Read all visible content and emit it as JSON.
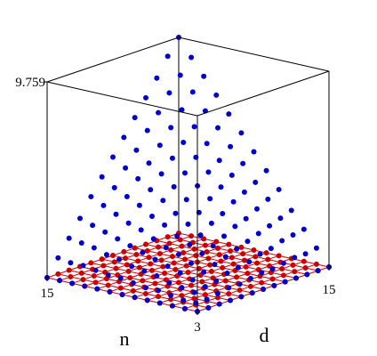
{
  "chart_data": {
    "type": "scatter3d",
    "xlabel": "n",
    "ylabel": "d",
    "x": [
      3,
      4,
      5,
      6,
      7,
      8,
      9,
      10,
      11,
      12,
      13,
      14,
      15
    ],
    "y": [
      3,
      4,
      5,
      6,
      7,
      8,
      9,
      10,
      11,
      12,
      13,
      14,
      15
    ],
    "z": [
      [
        0,
        0,
        0,
        0,
        0,
        0,
        0,
        0,
        0,
        0,
        0,
        0,
        0
      ],
      [
        0,
        0.1,
        0.1,
        0.2,
        0.3,
        0.3,
        0.4,
        0.5,
        0.5,
        0.6,
        0.7,
        0.7,
        0.8
      ],
      [
        0,
        0.1,
        0.3,
        0.4,
        0.5,
        0.7,
        0.8,
        0.9,
        1.1,
        1.2,
        1.4,
        1.5,
        1.6
      ],
      [
        0,
        0.2,
        0.4,
        0.6,
        0.8,
        1.0,
        1.2,
        1.4,
        1.6,
        1.8,
        2.0,
        2.2,
        2.4
      ],
      [
        0,
        0.3,
        0.5,
        0.8,
        1.1,
        1.4,
        1.6,
        1.9,
        2.2,
        2.4,
        2.7,
        3.0,
        3.3
      ],
      [
        0,
        0.3,
        0.7,
        1.0,
        1.4,
        1.7,
        2.0,
        2.4,
        2.7,
        3.1,
        3.4,
        3.7,
        4.1
      ],
      [
        0,
        0.4,
        0.8,
        1.2,
        1.6,
        2.0,
        2.4,
        2.8,
        3.3,
        3.7,
        4.1,
        4.5,
        4.9
      ],
      [
        0,
        0.5,
        0.9,
        1.4,
        1.9,
        2.4,
        2.8,
        3.3,
        3.8,
        4.3,
        4.7,
        5.2,
        5.7
      ],
      [
        0,
        0.5,
        1.1,
        1.6,
        2.2,
        2.7,
        3.3,
        3.8,
        4.3,
        4.9,
        5.4,
        6.0,
        6.5
      ],
      [
        0,
        0.6,
        1.2,
        1.8,
        2.4,
        3.1,
        3.7,
        4.3,
        4.9,
        5.5,
        6.1,
        6.7,
        7.3
      ],
      [
        0,
        0.7,
        1.4,
        2.0,
        2.7,
        3.4,
        4.1,
        4.7,
        5.4,
        6.1,
        6.8,
        7.5,
        8.1
      ],
      [
        0,
        0.7,
        1.5,
        2.2,
        3.0,
        3.7,
        4.5,
        5.2,
        6.0,
        6.7,
        7.5,
        8.2,
        8.9
      ],
      [
        0,
        0.8,
        1.6,
        2.4,
        3.3,
        4.1,
        4.9,
        5.7,
        6.5,
        7.3,
        8.1,
        9.0,
        9.759
      ]
    ],
    "color": "#0000cc",
    "floor_color": "#cc0000",
    "xlim": [
      3,
      15
    ],
    "ylim": [
      3,
      15
    ],
    "zlim": [
      0,
      9.759
    ],
    "xticks": [
      3,
      15
    ],
    "yticks": [
      15
    ],
    "zticks": [
      9.759
    ]
  }
}
